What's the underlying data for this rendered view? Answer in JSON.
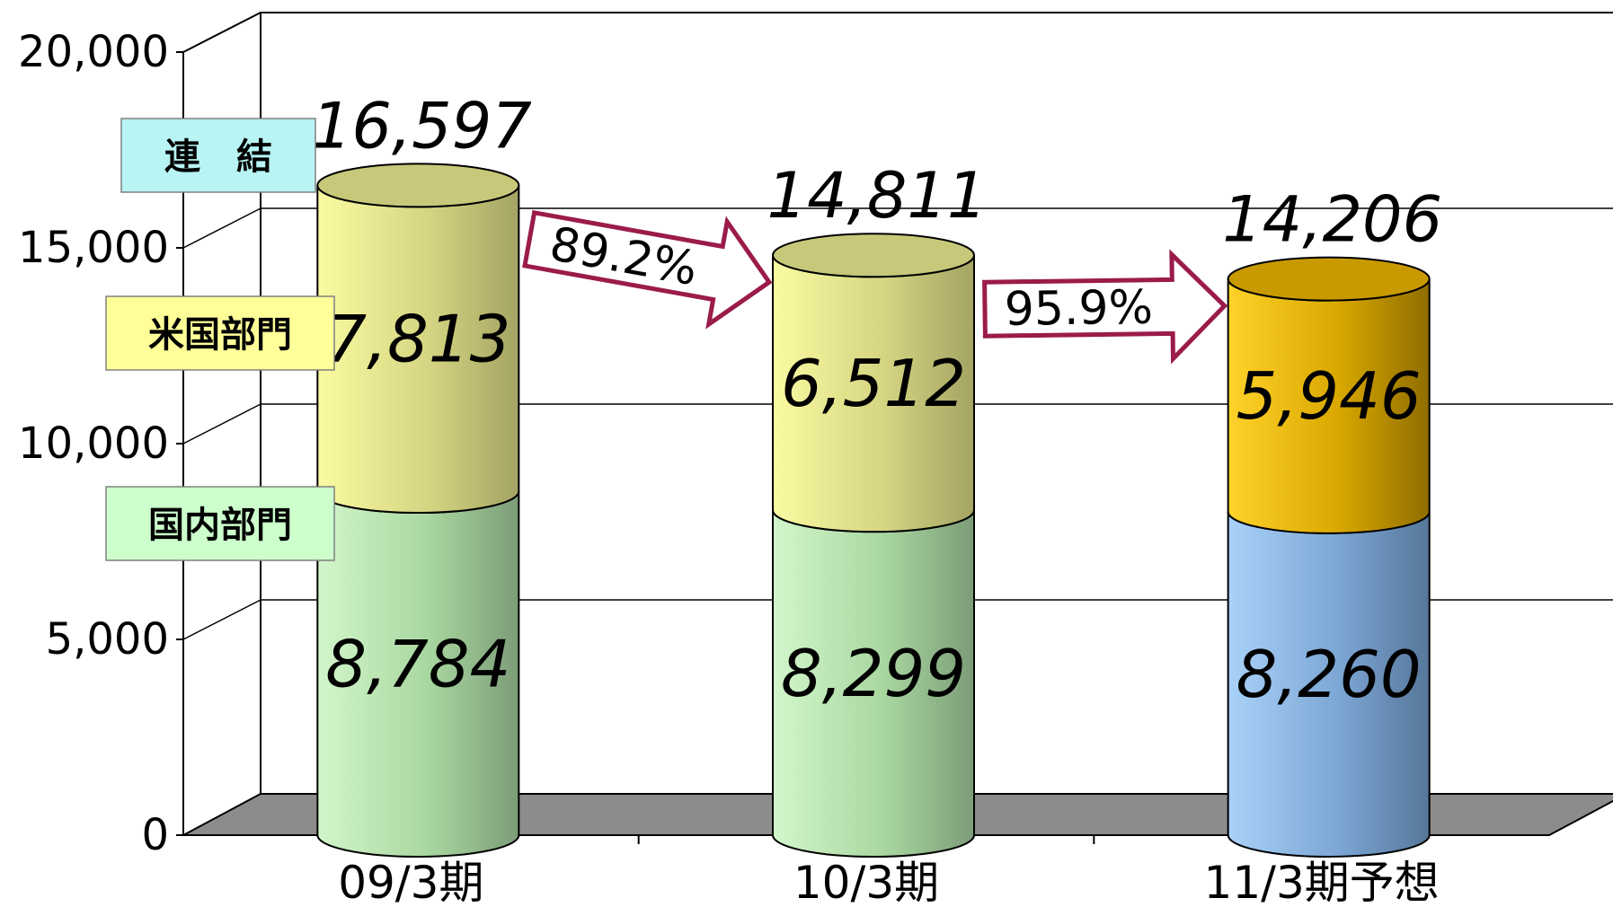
{
  "chart_data": {
    "type": "bar",
    "stacked": true,
    "categories": [
      "09/3期",
      "10/3期",
      "11/3期予想"
    ],
    "series": [
      {
        "name": "国内部門",
        "values": [
          8784,
          8299,
          8260
        ]
      },
      {
        "name": "米国部門",
        "values": [
          7813,
          6512,
          5946
        ]
      }
    ],
    "totals": [
      16597,
      14811,
      14206
    ],
    "legend_labels": [
      "連　結",
      "米国部門",
      "国内部門"
    ],
    "growth": [
      {
        "from": 0,
        "to": 1,
        "label": "89.2%"
      },
      {
        "from": 1,
        "to": 2,
        "label": "95.9%"
      }
    ],
    "ylim": [
      0,
      20000
    ],
    "yticks": [
      0,
      5000,
      10000,
      15000,
      20000
    ],
    "ytick_labels": [
      "0",
      "5,000",
      "10,000",
      "15,000",
      "20,000"
    ],
    "grid": true,
    "colors": {
      "consolidated_box": "#b8f4f4",
      "us_box": "#ffff99",
      "domestic_box": "#ccffcc",
      "domestic_normal": "#b8e8b0",
      "us_normal": "#e6e68a",
      "domestic_forecast": "#7ea9d8",
      "us_forecast": "#e3b300",
      "arrow": "#9b1b4a",
      "floor": "#8c8c8c"
    }
  }
}
